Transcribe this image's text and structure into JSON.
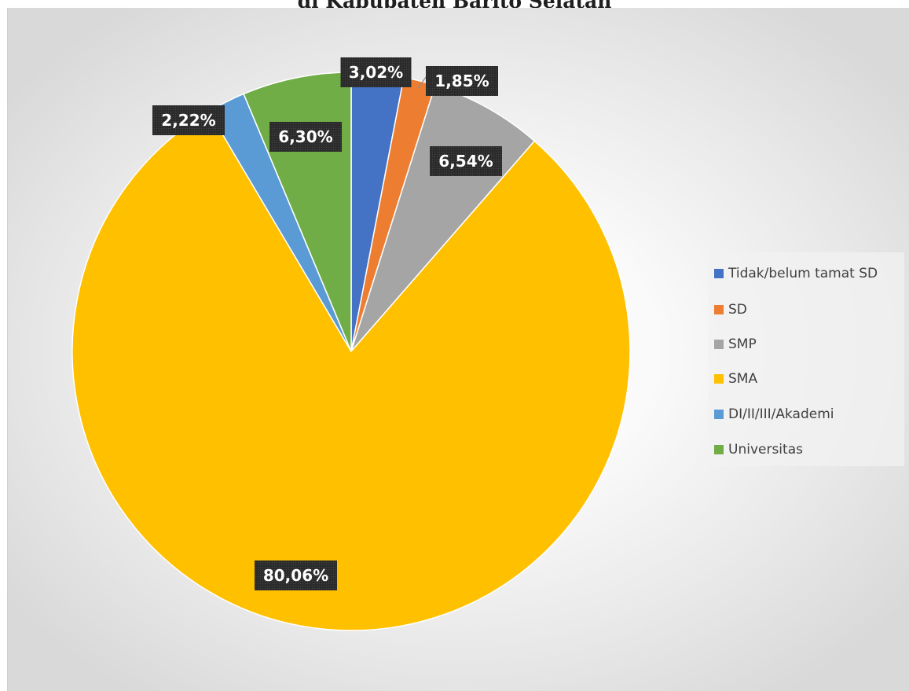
{
  "chart_data": {
    "type": "pie",
    "title": "di Kabupaten Barito Selatan",
    "categories": [
      "Tidak/belum tamat SD",
      "SD",
      "SMP",
      "SMA",
      "DI/II/III/Akademi",
      "Universitas"
    ],
    "values": [
      3.02,
      1.85,
      6.54,
      80.06,
      2.22,
      6.3
    ],
    "data_labels": [
      "3,02%",
      "1,85%",
      "6,54%",
      "80,06%",
      "2,22%",
      "6,30%"
    ],
    "colors": [
      "#4472C4",
      "#ED7D31",
      "#A5A5A5",
      "#FFC000",
      "#5B9BD5",
      "#70AD47"
    ],
    "legend_position": "right",
    "start_angle": "12 o'clock, clockwise"
  }
}
